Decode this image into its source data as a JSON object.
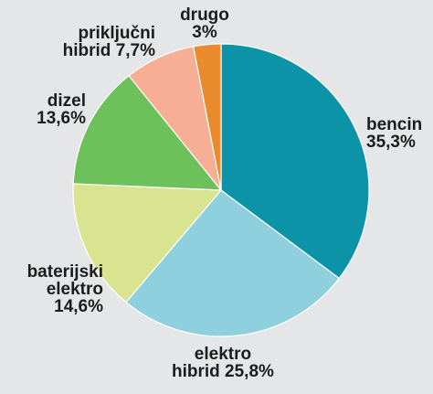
{
  "chart_data": {
    "type": "pie",
    "title": "",
    "start": "12 o'clock",
    "direction": "clockwise",
    "slices": [
      {
        "label_lines": [
          "bencin",
          "35,3%"
        ],
        "value": 35.3,
        "color": "#0d93a8"
      },
      {
        "label_lines": [
          "elektro",
          "hibrid 25,8%"
        ],
        "value": 25.8,
        "color": "#8fd0de"
      },
      {
        "label_lines": [
          "baterijski",
          "elektro",
          "14,6%"
        ],
        "value": 14.6,
        "color": "#d9e491"
      },
      {
        "label_lines": [
          "dizel",
          "13,6%"
        ],
        "value": 13.6,
        "color": "#6cc15a"
      },
      {
        "label_lines": [
          "priključni",
          "hibrid 7,7%"
        ],
        "value": 7.7,
        "color": "#f6ae95"
      },
      {
        "label_lines": [
          "drugo",
          "3%"
        ],
        "value": 3.0,
        "color": "#e98b2c"
      }
    ]
  }
}
